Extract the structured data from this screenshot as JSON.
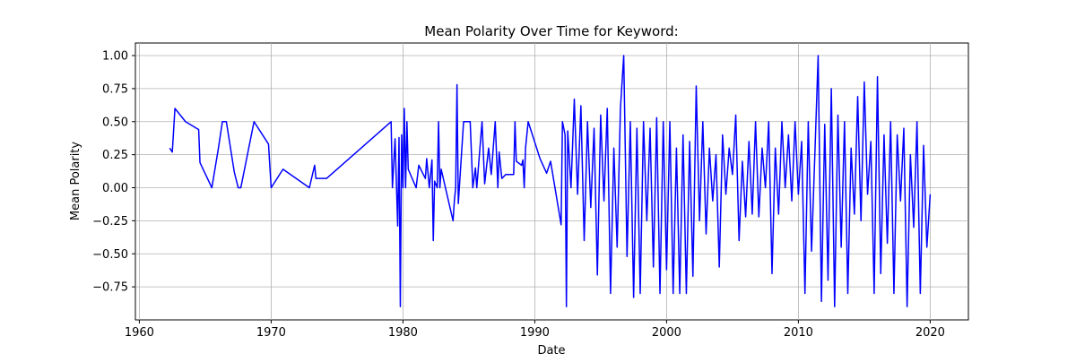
{
  "chart_data": {
    "type": "line",
    "title": "Mean Polarity Over Time for Keyword:",
    "x_label": "Date",
    "y_label": "Mean Polarity",
    "grid": true,
    "xlim": [
      1959.7,
      2022.9
    ],
    "xticks": [
      1960,
      1970,
      1980,
      1990,
      2000,
      2010,
      2020
    ],
    "ylim": [
      -1.0,
      1.095
    ],
    "yticks": [
      {
        "value": -0.75,
        "label": "−0.75"
      },
      {
        "value": -0.5,
        "label": "−0.50"
      },
      {
        "value": -0.25,
        "label": "−0.25"
      },
      {
        "value": 0,
        "label": "0.00"
      },
      {
        "value": 0.25,
        "label": "0.25"
      },
      {
        "value": 0.5,
        "label": "0.50"
      },
      {
        "value": 0.75,
        "label": "0.75"
      },
      {
        "value": 1,
        "label": "1.00"
      }
    ],
    "series": [
      {
        "name": "Mean Polarity",
        "color": "#0000ff",
        "x": [
          1962.3,
          1962.5,
          1962.7,
          1963.5,
          1964.5,
          1964.6,
          1965.5,
          1966.0,
          1966.3,
          1966.6,
          1967.2,
          1967.5,
          1967.7,
          1968.2,
          1968.7,
          1969.8,
          1970.0,
          1970.9,
          1972.9,
          1973.3,
          1973.4,
          1974.2,
          1979.1,
          1979.2,
          1979.4,
          1979.6,
          1979.7,
          1979.8,
          1979.9,
          1980.0,
          1980.1,
          1980.2,
          1980.3,
          1980.4,
          1981.0,
          1981.2,
          1981.7,
          1981.8,
          1982.0,
          1982.2,
          1982.3,
          1982.4,
          1982.6,
          1982.7,
          1982.8,
          1982.9,
          1983.8,
          1983.9,
          1984.0,
          1984.1,
          1984.2,
          1984.6,
          1985.1,
          1985.3,
          1985.5,
          1985.6,
          1986.0,
          1986.2,
          1986.5,
          1986.7,
          1987.0,
          1987.2,
          1987.3,
          1987.5,
          1987.8,
          1988.4,
          1988.5,
          1988.6,
          1989.0,
          1989.1,
          1989.2,
          1989.3,
          1989.5,
          1990.4,
          1990.9,
          1991.2,
          1992.0,
          1992.1,
          1992.3,
          1992.4,
          1992.5,
          1992.75,
          1993.0,
          1993.25,
          1993.5,
          1993.75,
          1994.0,
          1994.25,
          1994.5,
          1994.75,
          1995.0,
          1995.25,
          1995.5,
          1995.75,
          1996.0,
          1996.25,
          1996.5,
          1996.75,
          1997.0,
          1997.25,
          1997.5,
          1997.75,
          1998.0,
          1998.25,
          1998.5,
          1998.75,
          1999.0,
          1999.25,
          1999.5,
          1999.75,
          2000.0,
          2000.25,
          2000.5,
          2000.75,
          2001.0,
          2001.25,
          2001.5,
          2001.75,
          2002.0,
          2002.25,
          2002.5,
          2002.75,
          2003.0,
          2003.25,
          2003.5,
          2003.75,
          2004.0,
          2004.25,
          2004.5,
          2004.75,
          2005.0,
          2005.25,
          2005.5,
          2005.75,
          2006.0,
          2006.25,
          2006.5,
          2006.75,
          2007.0,
          2007.25,
          2007.5,
          2007.75,
          2008.0,
          2008.25,
          2008.5,
          2008.75,
          2009.0,
          2009.25,
          2009.5,
          2009.75,
          2010.0,
          2010.25,
          2010.5,
          2010.75,
          2011.0,
          2011.25,
          2011.5,
          2011.75,
          2012.0,
          2012.25,
          2012.5,
          2012.75,
          2013.0,
          2013.25,
          2013.5,
          2013.75,
          2014.0,
          2014.25,
          2014.5,
          2014.75,
          2015.0,
          2015.25,
          2015.5,
          2015.75,
          2016.0,
          2016.25,
          2016.5,
          2016.75,
          2017.0,
          2017.25,
          2017.5,
          2017.75,
          2018.0,
          2018.25,
          2018.5,
          2018.75,
          2019.0,
          2019.25,
          2019.5,
          2019.75,
          2020.0
        ],
        "values": [
          0.3,
          0.27,
          0.6,
          0.5,
          0.44,
          0.19,
          0.0,
          0.3,
          0.5,
          0.5,
          0.12,
          0.0,
          0.0,
          0.25,
          0.5,
          0.33,
          0.0,
          0.14,
          0.0,
          0.17,
          0.07,
          0.07,
          0.5,
          0.0,
          0.37,
          -0.29,
          0.38,
          -0.9,
          0.4,
          0.0,
          0.6,
          0.0,
          0.5,
          0.14,
          0.0,
          0.17,
          0.07,
          0.22,
          0.0,
          0.21,
          -0.4,
          0.05,
          0.0,
          0.5,
          0.0,
          0.14,
          -0.25,
          -0.1,
          0.0,
          0.78,
          -0.12,
          0.5,
          0.5,
          0.0,
          0.15,
          0.0,
          0.5,
          0.03,
          0.3,
          0.1,
          0.5,
          0.0,
          0.27,
          0.07,
          0.1,
          0.1,
          0.5,
          0.2,
          0.17,
          0.21,
          0.0,
          0.3,
          0.5,
          0.22,
          0.11,
          0.2,
          -0.28,
          0.5,
          0.4,
          -0.9,
          0.43,
          0.0,
          0.67,
          -0.05,
          0.62,
          -0.4,
          0.5,
          -0.15,
          0.45,
          -0.66,
          0.55,
          -0.1,
          0.6,
          -0.8,
          0.3,
          -0.45,
          0.6,
          1.0,
          -0.52,
          0.5,
          -0.83,
          0.45,
          -0.8,
          0.5,
          -0.25,
          0.45,
          -0.6,
          0.53,
          -0.8,
          0.5,
          -0.62,
          0.5,
          -0.8,
          0.3,
          -0.8,
          0.4,
          -0.8,
          0.35,
          -0.67,
          0.77,
          -0.25,
          0.5,
          -0.35,
          0.3,
          -0.1,
          0.25,
          -0.6,
          0.4,
          -0.05,
          0.3,
          0.1,
          0.55,
          -0.4,
          0.2,
          -0.22,
          0.35,
          -0.2,
          0.5,
          -0.22,
          0.3,
          0.0,
          0.5,
          -0.65,
          0.3,
          -0.2,
          0.5,
          0.0,
          0.4,
          -0.1,
          0.5,
          -0.05,
          0.35,
          -0.8,
          0.5,
          -0.48,
          0.25,
          1.0,
          -0.86,
          0.48,
          -0.7,
          0.75,
          -0.9,
          0.55,
          -0.45,
          0.5,
          -0.8,
          0.3,
          -0.2,
          0.69,
          -0.25,
          0.8,
          -0.05,
          0.35,
          -0.8,
          0.84,
          -0.65,
          0.4,
          -0.42,
          0.5,
          -0.8,
          0.4,
          -0.1,
          0.45,
          -0.9,
          0.25,
          -0.3,
          0.5,
          -0.8,
          0.32,
          -0.45,
          -0.05
        ]
      }
    ]
  }
}
